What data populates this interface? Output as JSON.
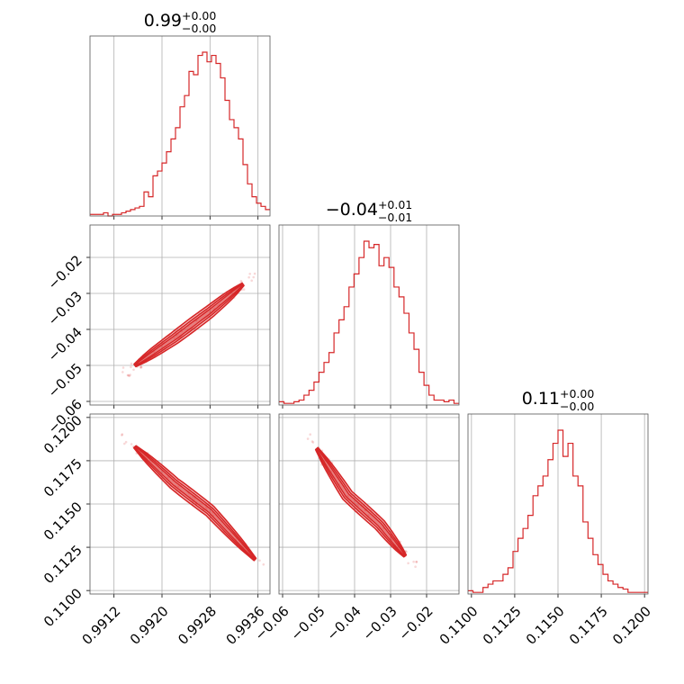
{
  "colors": {
    "accent": "#d62728",
    "grid": "#b0b0b0",
    "spine": "#555555",
    "background": "#ffffff"
  },
  "chart_data": {
    "type": "corner",
    "parameters": [
      {
        "title_value": "0.99",
        "title_sup": "+0.00",
        "title_sub": "−0.00",
        "range": [
          0.9908,
          0.9938
        ],
        "ticks": [
          0.9912,
          0.992,
          0.9928,
          0.9936
        ],
        "tick_labels": [
          "0.9912",
          "0.9920",
          "0.9928",
          "0.9936"
        ]
      },
      {
        "title_value": "−0.04",
        "title_sup": "+0.01",
        "title_sub": "−0.01",
        "range": [
          -0.061,
          -0.011
        ],
        "ticks": [
          -0.06,
          -0.05,
          -0.04,
          -0.03,
          -0.02
        ],
        "tick_labels": [
          "−0.06",
          "−0.05",
          "−0.04",
          "−0.03",
          "−0.02"
        ]
      },
      {
        "title_value": "0.11",
        "title_sup": "+0.00",
        "title_sub": "−0.00",
        "range": [
          0.1098,
          0.1202
        ],
        "ticks": [
          0.11,
          0.1125,
          0.115,
          0.1175,
          0.12
        ],
        "tick_labels": [
          "0.1100",
          "0.1125",
          "0.1150",
          "0.1175",
          "0.1200"
        ]
      }
    ],
    "histograms": [
      {
        "param": 0,
        "bin_range": [
          0.9908,
          0.9938
        ],
        "counts": [
          1,
          1,
          1,
          2,
          0,
          1,
          1,
          2,
          3,
          4,
          5,
          6,
          15,
          12,
          25,
          28,
          33,
          40,
          48,
          55,
          68,
          75,
          90,
          88,
          100,
          102,
          96,
          100,
          95,
          86,
          72,
          60,
          55,
          48,
          32,
          20,
          12,
          8,
          6,
          4
        ]
      },
      {
        "param": 1,
        "bin_range": [
          -0.061,
          -0.011
        ],
        "counts": [
          2,
          1,
          1,
          2,
          3,
          6,
          9,
          14,
          20,
          26,
          32,
          44,
          52,
          60,
          72,
          80,
          90,
          100,
          96,
          98,
          85,
          90,
          84,
          72,
          66,
          56,
          44,
          34,
          20,
          12,
          6,
          3,
          3,
          2,
          3,
          1
        ]
      },
      {
        "param": 2,
        "bin_range": [
          0.1098,
          0.1202
        ],
        "counts": [
          2,
          1,
          1,
          4,
          6,
          8,
          8,
          12,
          16,
          26,
          34,
          40,
          48,
          60,
          66,
          72,
          82,
          92,
          100,
          84,
          92,
          72,
          66,
          44,
          34,
          24,
          18,
          12,
          8,
          6,
          4,
          3,
          1,
          1,
          1,
          1
        ]
      }
    ],
    "correlations": [
      {
        "x_param": 0,
        "y_param": 1,
        "relation": "positive",
        "ridge_x": [
          0.99155,
          0.9922,
          0.9928,
          0.99335
        ],
        "ridge_y": [
          -0.05,
          -0.0425,
          -0.035,
          -0.0275
        ]
      },
      {
        "x_param": 0,
        "y_param": 2,
        "relation": "negative",
        "ridge_x": [
          0.99155,
          0.9922,
          0.9928,
          0.99355
        ],
        "ridge_y": [
          0.1183,
          0.1162,
          0.1146,
          0.1118
        ]
      },
      {
        "x_param": 1,
        "y_param": 2,
        "relation": "negative",
        "ridge_x": [
          -0.0505,
          -0.042,
          -0.033,
          -0.026
        ],
        "ridge_y": [
          0.1182,
          0.1155,
          0.1138,
          0.112
        ]
      }
    ],
    "grid": true,
    "legend": "none"
  }
}
